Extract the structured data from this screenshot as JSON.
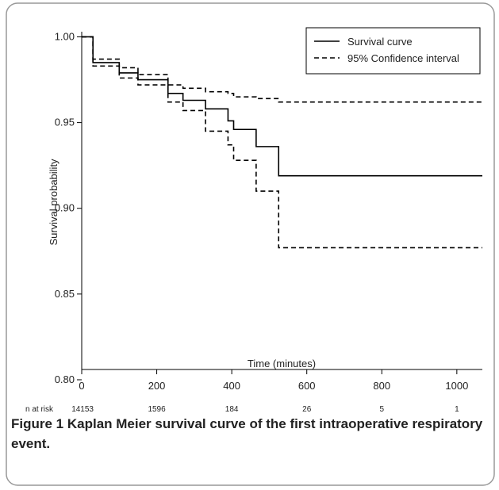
{
  "chart_data": {
    "type": "step",
    "xlabel": "Time (minutes)",
    "ylabel": "Survival probability",
    "x": [
      0,
      30,
      100,
      150,
      230,
      270,
      330,
      390,
      405,
      465,
      525,
      1068
    ],
    "series": [
      {
        "name": "Survival curve",
        "color": "#000000",
        "dash": false,
        "values": [
          1.0,
          0.985,
          0.979,
          0.975,
          0.967,
          0.963,
          0.958,
          0.951,
          0.946,
          0.936,
          0.919,
          0.919
        ]
      },
      {
        "name": "95% Confidence interval",
        "color": "#000000",
        "dash": true,
        "values": [
          1.0,
          0.987,
          0.982,
          0.978,
          0.972,
          0.97,
          0.968,
          0.967,
          0.965,
          0.964,
          0.962,
          0.962
        ]
      },
      {
        "color": "#000000",
        "dash": true,
        "values": [
          1.0,
          0.983,
          0.976,
          0.972,
          0.962,
          0.957,
          0.945,
          0.937,
          0.928,
          0.91,
          0.877,
          0.877
        ]
      }
    ],
    "xlim": [
      0,
      1068
    ],
    "ylim": [
      0.806,
      1.003
    ],
    "xticks": [
      0,
      200,
      400,
      600,
      800,
      1000
    ],
    "yticks": [
      {
        "value": 1.0,
        "label": "1.00"
      },
      {
        "value": 0.95,
        "label": "0.95"
      },
      {
        "value": 0.9,
        "label": "0.90"
      },
      {
        "value": 0.85,
        "label": "0.85"
      },
      {
        "value": 0.8,
        "label": "0.80"
      }
    ],
    "legend": "top-right",
    "risk_label": "n at risk",
    "risk_x": [
      0,
      200,
      400,
      600,
      800,
      1000
    ],
    "risk_values": [
      14153,
      1596,
      184,
      26,
      5,
      1
    ],
    "caption_label": "Figure 1",
    "caption": "Kaplan Meier survival curve of the first intraoperative respiratory event."
  }
}
